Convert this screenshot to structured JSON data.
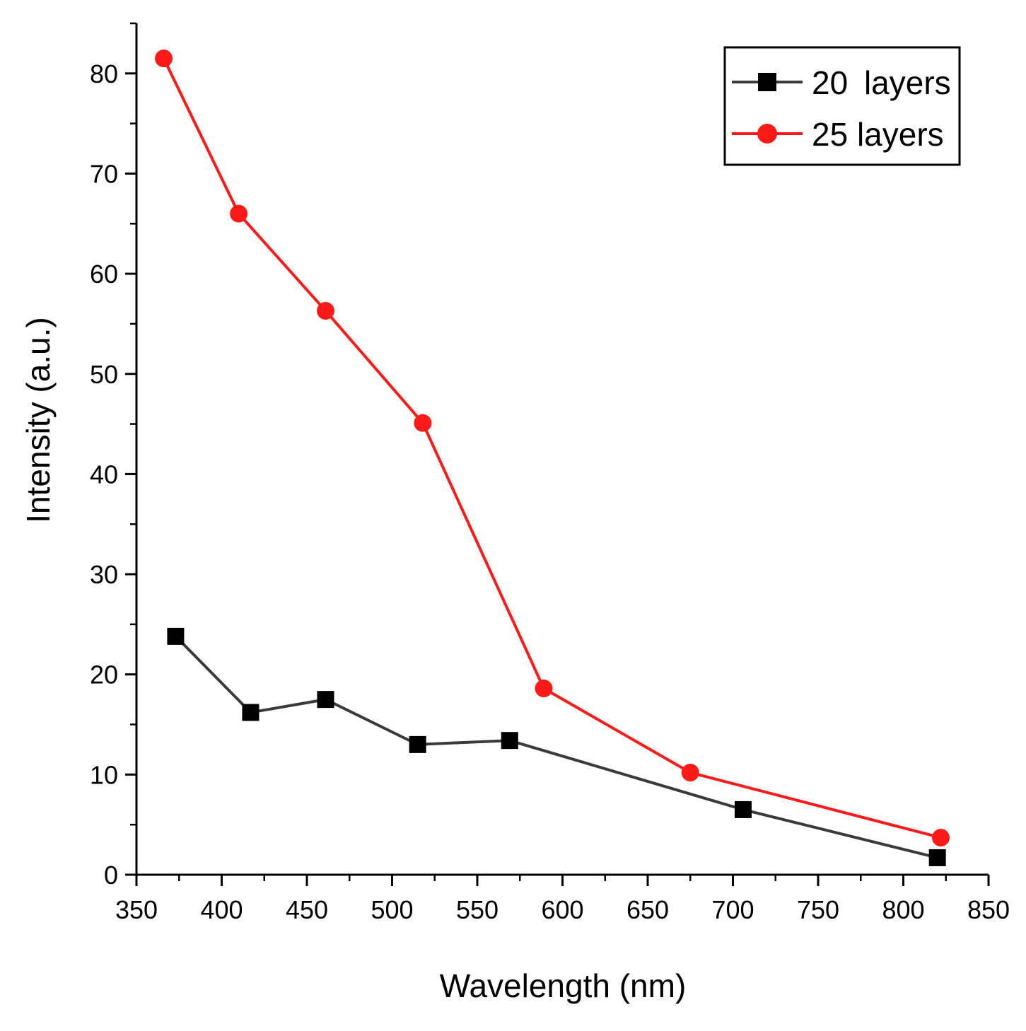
{
  "chart_data": {
    "type": "line",
    "title": "",
    "xlabel": "Wavelength (nm)",
    "ylabel": "Intensity (a.u.)",
    "xlim": [
      350,
      850
    ],
    "ylim": [
      0,
      85
    ],
    "xticks": [
      350,
      400,
      450,
      500,
      550,
      600,
      650,
      700,
      750,
      800,
      850
    ],
    "yticks": [
      0,
      10,
      20,
      30,
      40,
      50,
      60,
      70,
      80
    ],
    "grid": false,
    "legend_position": "top-right",
    "series": [
      {
        "name": "20 layers",
        "color": "#3a3a3a",
        "marker": "square",
        "x": [
          373,
          417,
          461,
          515,
          569,
          706,
          820
        ],
        "y": [
          23.8,
          16.2,
          17.5,
          13.0,
          13.4,
          6.5,
          1.7
        ]
      },
      {
        "name": "25 layers",
        "color": "#ff1a1a",
        "marker": "circle",
        "x": [
          366,
          410,
          461,
          518,
          589,
          675,
          822
        ],
        "y": [
          81.5,
          66.0,
          56.3,
          45.1,
          18.6,
          10.2,
          3.7
        ]
      }
    ]
  }
}
